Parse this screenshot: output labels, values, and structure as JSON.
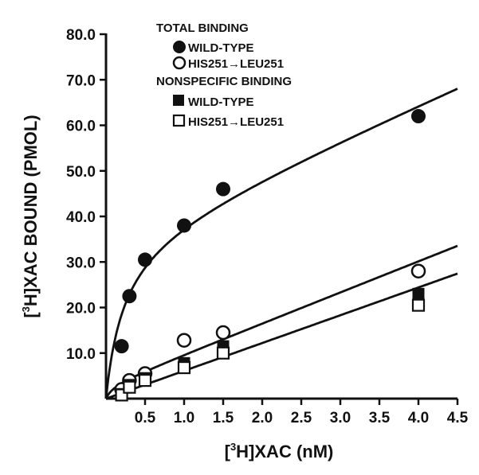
{
  "chart_data": {
    "type": "scatter",
    "xlabel_sup": "3",
    "xlabel_pre": "[",
    "xlabel_post": "H]XAC (nM)",
    "ylabel_sup": "3",
    "ylabel_pre": "[",
    "ylabel_post": "H]XAC BOUND (PMOL)",
    "xlim": [
      0,
      4.5
    ],
    "ylim": [
      0,
      80
    ],
    "x_ticks": [
      "0.5",
      "1.0",
      "1.5",
      "2.0",
      "2.5",
      "3.0",
      "3.5",
      "4.0",
      "4.5"
    ],
    "y_ticks": [
      "10.0",
      "20.0",
      "30.0",
      "40.0",
      "50.0",
      "60.0",
      "70.0",
      "80.0"
    ],
    "legend": {
      "group1": "TOTAL BINDING",
      "group2": "NONSPECIFIC BINDING",
      "wt": "WILD-TYPE",
      "mut_a": "HIS251",
      "mut_b": "LEU251",
      "arrow": "→"
    },
    "series": [
      {
        "name": "TOTAL BINDING WILD-TYPE",
        "marker": "filled-circle",
        "x": [
          0.2,
          0.3,
          0.5,
          1.0,
          1.5,
          4.0
        ],
        "y": [
          11.5,
          22.5,
          30.5,
          38.0,
          46.0,
          62.0
        ]
      },
      {
        "name": "TOTAL BINDING HIS251→LEU251",
        "marker": "open-circle",
        "x": [
          0.2,
          0.3,
          0.5,
          1.0,
          1.5,
          4.0
        ],
        "y": [
          2.0,
          4.0,
          5.5,
          12.8,
          14.5,
          28.0
        ]
      },
      {
        "name": "NONSPECIFIC BINDING WILD-TYPE",
        "marker": "filled-square",
        "x": [
          0.2,
          0.3,
          0.5,
          1.0,
          1.5,
          4.0
        ],
        "y": [
          1.0,
          3.0,
          4.5,
          7.8,
          11.5,
          23.0
        ]
      },
      {
        "name": "NONSPECIFIC BINDING HIS251→LEU251",
        "marker": "open-square",
        "x": [
          0.2,
          0.3,
          0.5,
          1.0,
          1.5,
          4.0
        ],
        "y": [
          0.8,
          2.5,
          4.0,
          6.8,
          10.0,
          20.5
        ]
      }
    ],
    "fit_curves": [
      {
        "name": "total-wt-fit",
        "kind": "hyperbola-plus-linear",
        "bmax": 36.5,
        "kd": 0.23,
        "slope": 7.4
      },
      {
        "name": "total-mutant-fit",
        "kind": "hyperbola-plus-linear",
        "bmax": 3.0,
        "kd": 0.1,
        "slope": 6.8
      },
      {
        "name": "nonspecific-fit",
        "kind": "linear",
        "slope": 6.1,
        "intercept": 0
      }
    ]
  }
}
